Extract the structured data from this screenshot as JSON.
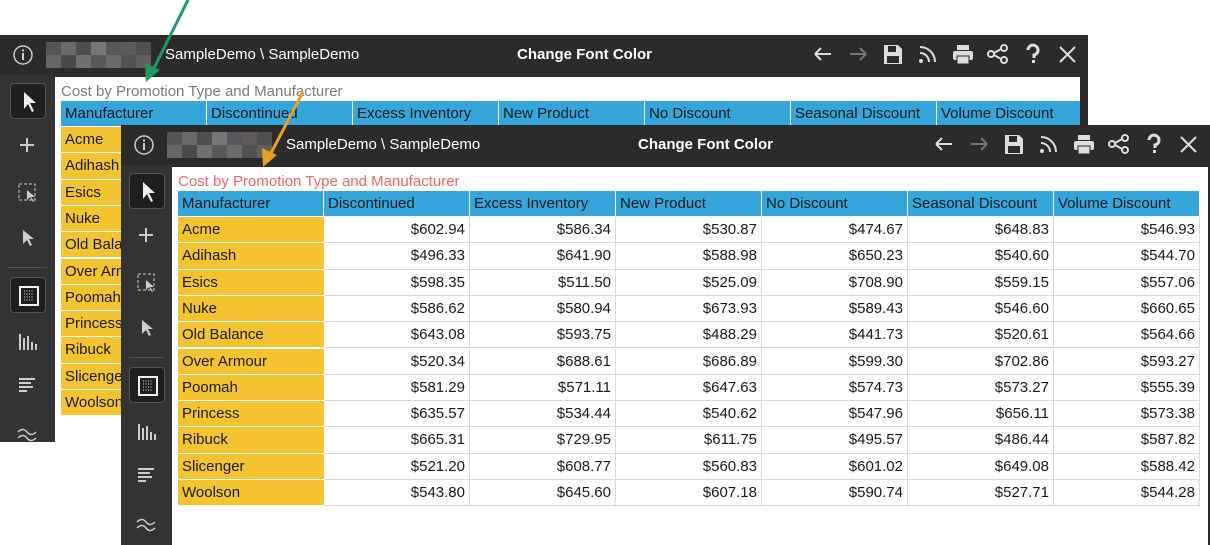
{
  "back_window": {
    "breadcrumb": "SampleDemo \\ SampleDemo",
    "window_title": "Change Font Color",
    "table_title": "Cost by Promotion Type and Manufacturer",
    "headers": [
      "Manufacturer",
      "Discontinued",
      "Excess Inventory",
      "New Product",
      "No Discount",
      "Seasonal Discount",
      "Volume Discount"
    ],
    "row_labels": [
      "Acme",
      "Adihash",
      "Esics",
      "Nuke",
      "Old Balance",
      "Over Armour",
      "Poomah",
      "Princess",
      "Ribuck",
      "Slicenger",
      "Woolson"
    ]
  },
  "front_window": {
    "breadcrumb": "SampleDemo \\ SampleDemo",
    "window_title": "Change Font Color",
    "table_title": "Cost by Promotion Type and Manufacturer",
    "headers": [
      "Manufacturer",
      "Discontinued",
      "Excess Inventory",
      "New Product",
      "No Discount",
      "Seasonal Discount",
      "Volume Discount"
    ],
    "rows": [
      [
        "Acme",
        "$602.94",
        "$586.34",
        "$530.87",
        "$474.67",
        "$648.83",
        "$546.93"
      ],
      [
        "Adihash",
        "$496.33",
        "$641.90",
        "$588.98",
        "$650.23",
        "$540.60",
        "$544.70"
      ],
      [
        "Esics",
        "$598.35",
        "$511.50",
        "$525.09",
        "$708.90",
        "$559.15",
        "$557.06"
      ],
      [
        "Nuke",
        "$586.62",
        "$580.94",
        "$673.93",
        "$589.43",
        "$546.60",
        "$660.65"
      ],
      [
        "Old Balance",
        "$643.08",
        "$593.75",
        "$488.29",
        "$441.73",
        "$520.61",
        "$564.66"
      ],
      [
        "Over Armour",
        "$520.34",
        "$688.61",
        "$686.89",
        "$599.30",
        "$702.86",
        "$593.27"
      ],
      [
        "Poomah",
        "$581.29",
        "$571.11",
        "$647.63",
        "$574.73",
        "$573.27",
        "$555.39"
      ],
      [
        "Princess",
        "$635.57",
        "$534.44",
        "$540.62",
        "$547.96",
        "$656.11",
        "$573.38"
      ],
      [
        "Ribuck",
        "$665.31",
        "$729.95",
        "$611.75",
        "$495.57",
        "$486.44",
        "$587.82"
      ],
      [
        "Slicenger",
        "$521.20",
        "$608.77",
        "$560.83",
        "$601.02",
        "$649.08",
        "$588.42"
      ],
      [
        "Woolson",
        "$543.80",
        "$645.60",
        "$607.18",
        "$590.74",
        "$527.71",
        "$544.28"
      ]
    ]
  }
}
